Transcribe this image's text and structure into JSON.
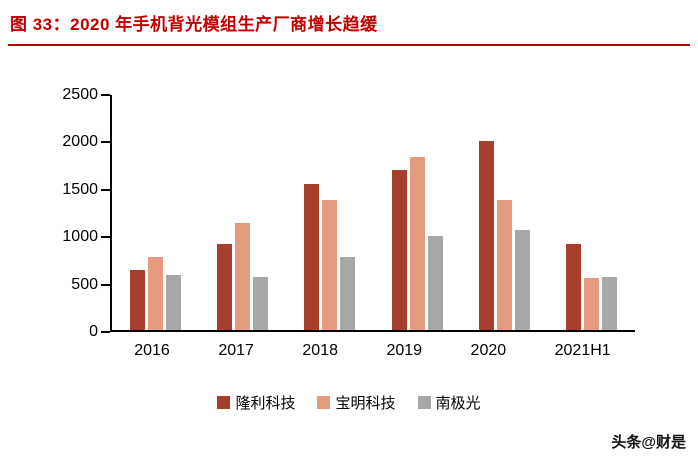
{
  "figure": {
    "title": "图 33：2020 年手机背光模组生产厂商增长趋缓",
    "accent_color": "#C00000"
  },
  "watermark": {
    "text": "头条@财是"
  },
  "chart_data": {
    "type": "bar",
    "title": "2020 年手机背光模组生产厂商增长趋缓",
    "categories": [
      "2016",
      "2017",
      "2018",
      "2019",
      "2020",
      "2021H1"
    ],
    "series": [
      {
        "name": "隆利科技",
        "color": "#A6402C",
        "values": [
          640,
          910,
          1550,
          1700,
          2010,
          920
        ]
      },
      {
        "name": "宝明科技",
        "color": "#E49B80",
        "values": [
          780,
          1140,
          1380,
          1840,
          1380,
          550
        ]
      },
      {
        "name": "南极光",
        "color": "#A7A7A7",
        "values": [
          580,
          560,
          780,
          1000,
          1060,
          560
        ]
      }
    ],
    "yticks": [
      0,
      500,
      1000,
      1500,
      2000,
      2500
    ],
    "ylim": [
      0,
      2500
    ],
    "xlabel": "",
    "ylabel": "",
    "grid": false,
    "legend_position": "bottom"
  }
}
